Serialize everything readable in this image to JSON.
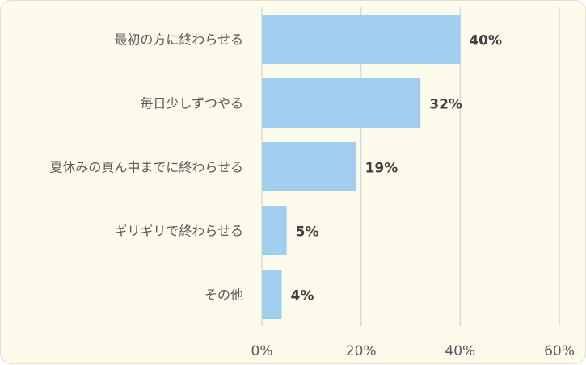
{
  "chart_data": {
    "type": "bar",
    "orientation": "horizontal",
    "categories": [
      "最初の方に終わらせる",
      "毎日少しずつやる",
      "夏休みの真ん中までに終わらせる",
      "ギリギリで終わらせる",
      "その他"
    ],
    "values": [
      40,
      32,
      19,
      5,
      4
    ],
    "value_labels": [
      "40%",
      "32%",
      "19%",
      "5%",
      "4%"
    ],
    "xlim": [
      0,
      60
    ],
    "xticks": [
      0,
      20,
      40,
      60
    ],
    "xtick_labels": [
      "0%",
      "20%",
      "40%",
      "60%"
    ],
    "grid": "vertical",
    "colors": {
      "bar": "#a1cdee",
      "grid": "#d9d9d9",
      "background": "#fdfbec"
    }
  }
}
